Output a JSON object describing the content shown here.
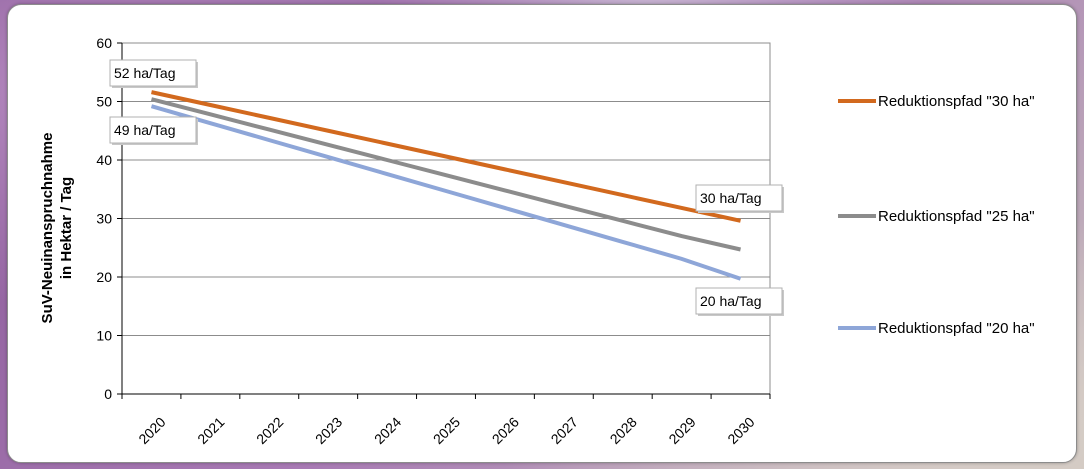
{
  "chart_data": {
    "type": "line",
    "title": "",
    "ylabel_line1": "SuV-Neuinanspruchnahme",
    "ylabel_line2": "in Hektar / Tag",
    "xlabel": "",
    "ylim": [
      0,
      60
    ],
    "yticks": [
      0,
      10,
      20,
      30,
      40,
      50,
      60
    ],
    "categories": [
      "2020",
      "2021",
      "2022",
      "2023",
      "2024",
      "2025",
      "2026",
      "2027",
      "2028",
      "2029",
      "2030"
    ],
    "series": [
      {
        "name": "Reduktionspfad \"30 ha\"",
        "color": "#d2691e",
        "values": [
          51.6,
          49.4,
          47.2,
          45.0,
          42.8,
          40.6,
          38.4,
          36.2,
          34.0,
          31.8,
          29.6
        ]
      },
      {
        "name": "Reduktionspfad \"25 ha\"",
        "color": "#8c8c8c",
        "values": [
          50.4,
          47.8,
          45.2,
          42.6,
          40.0,
          37.4,
          34.8,
          32.2,
          29.6,
          27.0,
          24.7
        ]
      },
      {
        "name": "Reduktionspfad \"20 ha\"",
        "color": "#8ea6d8",
        "values": [
          49.2,
          46.3,
          43.4,
          40.5,
          37.6,
          34.7,
          31.8,
          28.9,
          26.0,
          23.1,
          19.7
        ]
      }
    ],
    "annotations": [
      "52 ha/Tag",
      "49 ha/Tag",
      "30 ha/Tag",
      "20 ha/Tag"
    ],
    "grid": true,
    "legend": "right"
  }
}
